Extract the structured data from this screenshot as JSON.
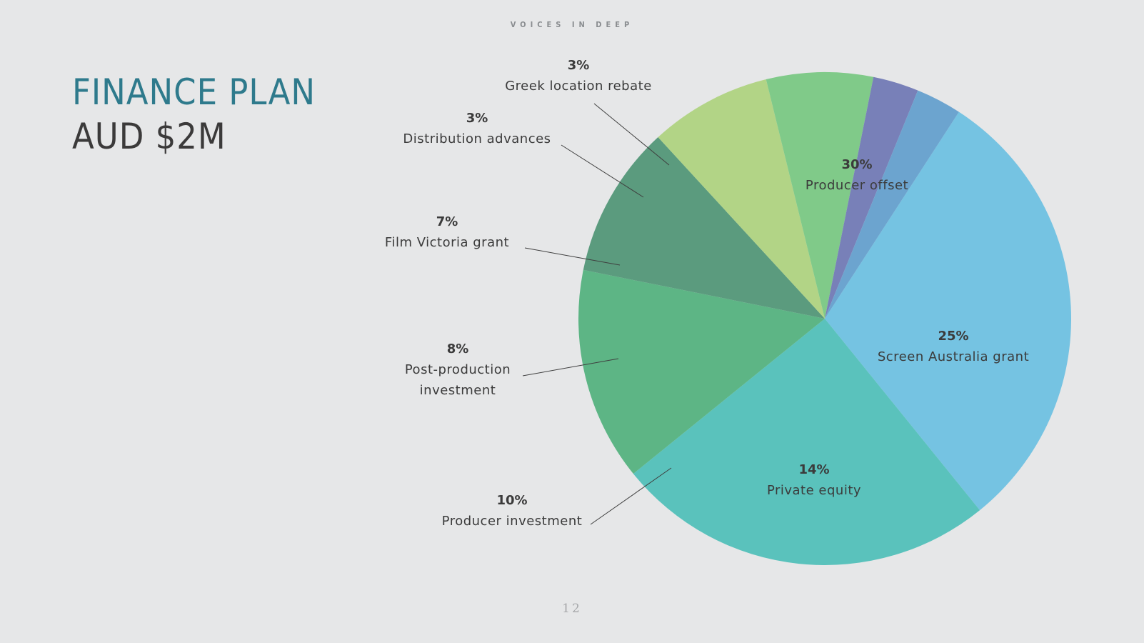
{
  "header": {
    "brand": "VOICES IN DEEP"
  },
  "title": {
    "line1": "FINANCE PLAN",
    "line2": "AUD $2M"
  },
  "page_number": "12",
  "chart_data": {
    "type": "pie",
    "title": "",
    "slices": [
      {
        "label": "Producer offset",
        "value": 30,
        "pct": "30%",
        "color": "#75c3e2",
        "label_lines": [
          "Producer offset"
        ]
      },
      {
        "label": "Screen Australia grant",
        "value": 25,
        "pct": "25%",
        "color": "#5ac2bc",
        "label_lines": [
          "Screen Australia grant"
        ]
      },
      {
        "label": "Private equity",
        "value": 14,
        "pct": "14%",
        "color": "#5db585",
        "label_lines": [
          "Private equity"
        ]
      },
      {
        "label": "Producer investment",
        "value": 10,
        "pct": "10%",
        "color": "#5b9b7e",
        "label_lines": [
          "Producer investment"
        ]
      },
      {
        "label": "Post-production investment",
        "value": 8,
        "pct": "8%",
        "color": "#b2d486",
        "label_lines": [
          "Post-production",
          "investment"
        ]
      },
      {
        "label": "Film Victoria grant",
        "value": 7,
        "pct": "7%",
        "color": "#80ca89",
        "label_lines": [
          "Film Victoria grant"
        ]
      },
      {
        "label": "Distribution advances",
        "value": 3,
        "pct": "3%",
        "color": "#7880b8",
        "label_lines": [
          "Distribution advances"
        ]
      },
      {
        "label": "Greek location rebate",
        "value": 3,
        "pct": "3%",
        "color": "#6ca4cf",
        "label_lines": [
          "Greek location rebate"
        ]
      }
    ],
    "legend": "none"
  }
}
